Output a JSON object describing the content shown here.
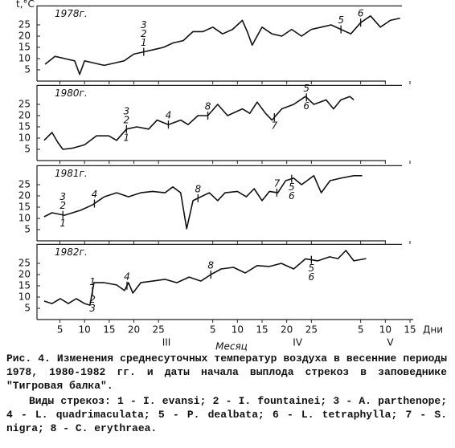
{
  "chart_data": [
    {
      "type": "line",
      "title": "1978г.",
      "ylabel": "t,°C",
      "xlim": [
        1,
        76
      ],
      "ylim": [
        0,
        32
      ],
      "yticks": [
        5,
        10,
        15,
        20,
        25
      ],
      "series": [
        {
          "color": "#111111",
          "x": [
            2,
            4,
            6,
            8,
            9,
            10,
            12,
            14,
            16,
            18,
            20,
            22,
            24,
            26,
            28,
            30,
            32,
            34,
            36,
            38,
            40,
            42,
            43,
            44,
            46,
            48,
            50,
            52,
            54,
            56,
            58,
            60,
            62,
            64,
            66,
            68,
            70,
            72,
            74
          ],
          "values": [
            7.5,
            11,
            10,
            9,
            3,
            9,
            8,
            7,
            8,
            9,
            12,
            13,
            14,
            15,
            17,
            18,
            22,
            22,
            24,
            21,
            23,
            27,
            22,
            16,
            24,
            21,
            20,
            23,
            20,
            23,
            24,
            25,
            23,
            21,
            26,
            29,
            24,
            27,
            28
          ]
        }
      ],
      "markers": [
        {
          "x": 22,
          "above": [
            "3",
            "2",
            "1"
          ]
        },
        {
          "x": 62,
          "above": [
            "5"
          ]
        },
        {
          "x": 66,
          "above": [
            "6"
          ]
        }
      ]
    },
    {
      "type": "line",
      "title": "1980г.",
      "xlim": [
        1,
        76
      ],
      "ylim": [
        0,
        32
      ],
      "yticks": [
        5,
        10,
        15,
        20,
        25
      ],
      "series": [
        {
          "color": "#111111",
          "x": [
            1.8,
            3.4,
            4.6,
            5.6,
            7.5,
            10,
            12.4,
            14.9,
            16.5,
            18.5,
            20.6,
            23,
            24.7,
            27,
            29.5,
            31,
            33,
            35,
            37,
            39,
            42,
            43.5,
            45,
            46.7,
            48,
            50,
            52.4,
            54.8,
            56.5,
            59,
            60.5,
            62,
            63.8,
            64.6
          ],
          "values": [
            9,
            12.5,
            8,
            5,
            5.5,
            7,
            11,
            11,
            9,
            14,
            15,
            14,
            18,
            16,
            18,
            16,
            20,
            20,
            25,
            20,
            23,
            21,
            26,
            21,
            18,
            23,
            25,
            28.5,
            25,
            27,
            23,
            27,
            28.5,
            27
          ]
        }
      ],
      "markers": [
        {
          "x": 18.5,
          "above": [
            "3",
            "2"
          ],
          "below": [
            "1"
          ]
        },
        {
          "x": 27,
          "above": [
            "4"
          ]
        },
        {
          "x": 35,
          "above": [
            "8"
          ]
        },
        {
          "x": 48.5,
          "below": [
            "7"
          ]
        },
        {
          "x": 55,
          "above": [
            "5"
          ],
          "below": [
            "6"
          ]
        }
      ]
    },
    {
      "type": "line",
      "title": "1981г.",
      "xlim": [
        1,
        76
      ],
      "ylim": [
        0,
        32
      ],
      "yticks": [
        5,
        10,
        15,
        20,
        25
      ],
      "series": [
        {
          "color": "#111111",
          "x": [
            1.8,
            3.4,
            5.9,
            9.2,
            11.6,
            14,
            16.5,
            18.9,
            21.4,
            23.8,
            26.3,
            27.9,
            29.5,
            30.7,
            32,
            33.6,
            35.3,
            37,
            38.5,
            41,
            42.8,
            44.4,
            46,
            47.5,
            49.2,
            50.8,
            52.4,
            54,
            56.5,
            58,
            59.8,
            62,
            64.6,
            66.3
          ],
          "values": [
            10.7,
            12.5,
            11.4,
            13.6,
            16,
            19.6,
            21.4,
            19.6,
            21.4,
            22,
            21.4,
            24,
            21.4,
            5.4,
            17.9,
            19.6,
            21.4,
            17.9,
            21.4,
            22,
            19.6,
            23.2,
            17.9,
            22,
            21.4,
            26.8,
            27.9,
            25,
            29,
            21.4,
            26.8,
            27.9,
            29,
            29
          ]
        }
      ],
      "markers": [
        {
          "x": 5.6,
          "above": [
            "3",
            "2"
          ],
          "below": [
            "1"
          ]
        },
        {
          "x": 12,
          "above": [
            "4"
          ]
        },
        {
          "x": 33,
          "above": [
            "8"
          ]
        },
        {
          "x": 49,
          "above": [
            "7"
          ]
        },
        {
          "x": 52,
          "below": [
            "5",
            "6"
          ]
        }
      ]
    },
    {
      "type": "line",
      "title": "1982г.",
      "xlim": [
        1,
        76
      ],
      "ylim": [
        0,
        32
      ],
      "yticks": [
        5,
        10,
        15,
        20,
        25
      ],
      "series": [
        {
          "color": "#111111",
          "x": [
            1.8,
            3.4,
            5.1,
            6.7,
            8.3,
            10,
            11.1,
            11.9,
            14,
            16.5,
            18.1,
            18.9,
            19.8,
            21.4,
            23.8,
            26.3,
            28.7,
            31.2,
            33.6,
            35.6,
            37.7,
            40.2,
            42.6,
            45,
            47.5,
            49.9,
            52.4,
            54.8,
            57.3,
            59.7,
            61.4,
            63,
            64.6,
            67.1
          ],
          "values": [
            8.2,
            7.1,
            9.3,
            7.1,
            9.3,
            7.1,
            6.4,
            16.4,
            16.4,
            15.4,
            12.9,
            16.4,
            11.8,
            16.4,
            17.1,
            17.9,
            16.4,
            18.9,
            17.1,
            20,
            22.5,
            23.2,
            20.7,
            24,
            23.6,
            25,
            22.5,
            27,
            26.1,
            27.9,
            27.1,
            30.7,
            26.1,
            27.1
          ]
        }
      ],
      "markers": [
        {
          "x": 11.6,
          "above": [
            "1"
          ],
          "below": [
            "2",
            "3"
          ]
        },
        {
          "x": 18.6,
          "above": [
            "4"
          ]
        },
        {
          "x": 35.6,
          "above": [
            "8"
          ]
        },
        {
          "x": 56,
          "below": [
            "5",
            "6"
          ]
        }
      ],
      "xlabel": "Дни",
      "month_label": "Месяц",
      "xticks": [
        {
          "value": 5,
          "label": "5"
        },
        {
          "value": 10,
          "label": "10"
        },
        {
          "value": 15,
          "label": "15"
        },
        {
          "value": 20,
          "label": "20"
        },
        {
          "value": 25,
          "label": "25"
        },
        {
          "value": 36,
          "label": "5"
        },
        {
          "value": 41,
          "label": "10"
        },
        {
          "value": 46,
          "label": "15"
        },
        {
          "value": 51,
          "label": "20"
        },
        {
          "value": 56,
          "label": "25"
        },
        {
          "value": 66,
          "label": "5"
        },
        {
          "value": 71,
          "label": "10"
        },
        {
          "value": 76,
          "label": "15"
        }
      ],
      "months": [
        {
          "value": 26.6,
          "label": "III"
        },
        {
          "value": 53.2,
          "label": "IV"
        },
        {
          "value": 72,
          "label": "V"
        }
      ]
    }
  ],
  "caption": {
    "figure": "Рис. 4. Изменения среднесуточных температур воздуха в весенние периоды 1978, 1980-1982 гг. и даты начала выплода стрекоз в заповеднике \"Тигровая балка\".",
    "species": "Виды стрекоз: 1 - I. evansi; 2 - I. fountainei; 3 - A. parthenope; 4 - L. quadrimaculata; 5 - P. dealbata; 6 - L. tetraphylla; 7 - S. nigra; 8 - C. erythraea."
  }
}
